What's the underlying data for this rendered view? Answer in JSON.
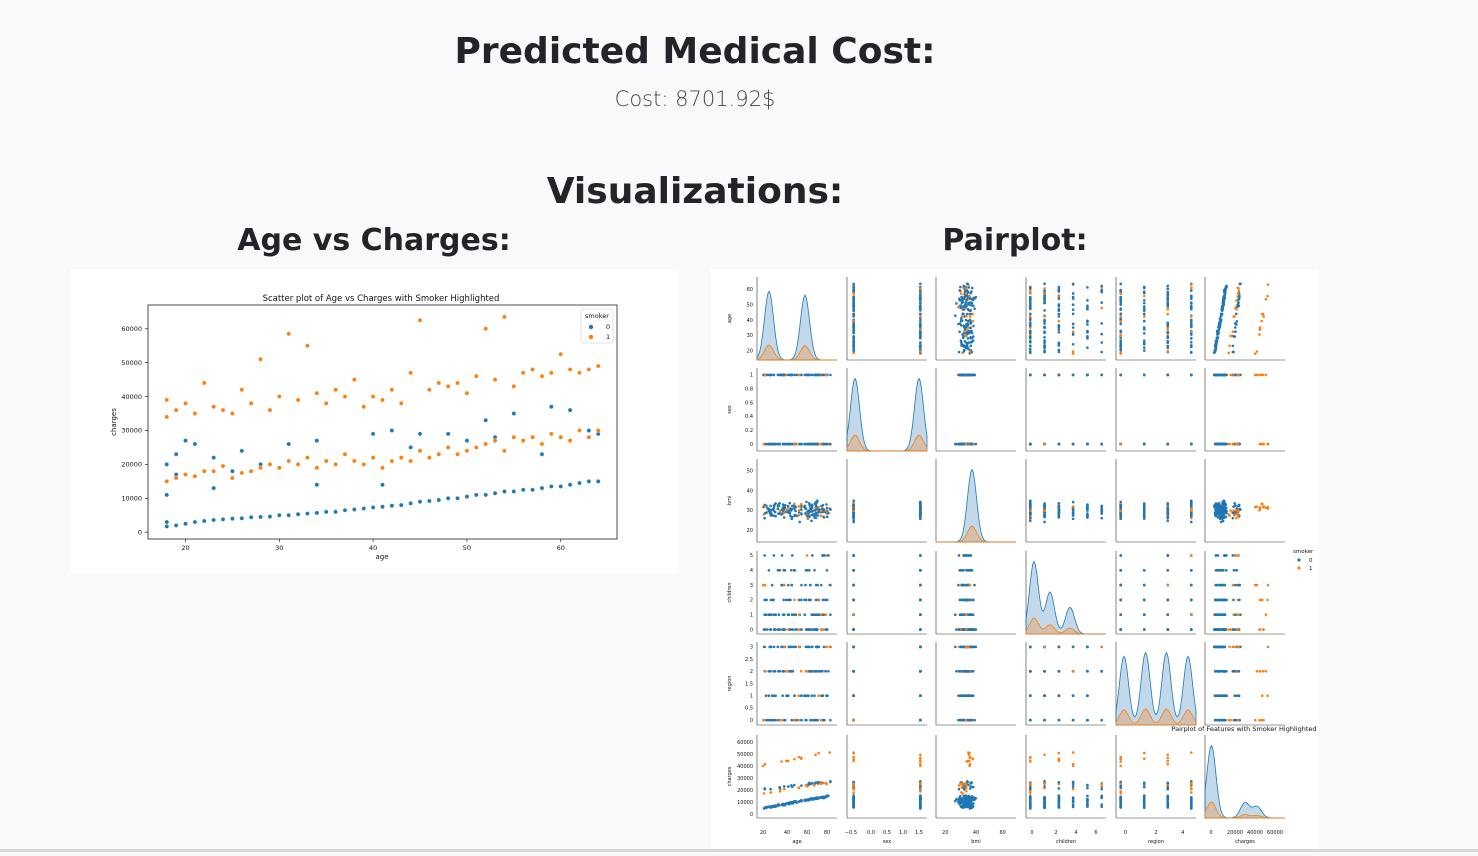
{
  "header": {
    "title": "Predicted Medical Cost:",
    "cost_text": "Cost: 8701.92$"
  },
  "visualizations": {
    "title": "Visualizations:",
    "age_title": "Age vs Charges:",
    "pair_title": "Pairplot:"
  },
  "colors": {
    "non_smoker": "#1f77b4",
    "smoker": "#ff7f0e"
  },
  "chart_data": [
    {
      "type": "scatter",
      "title": "Scatter plot of Age vs Charges with Smoker Highlighted",
      "xlabel": "age",
      "ylabel": "charges",
      "xlim": [
        16,
        66
      ],
      "ylim": [
        -2000,
        67000
      ],
      "xticks": [
        20,
        30,
        40,
        50,
        60
      ],
      "yticks": [
        0,
        10000,
        20000,
        30000,
        40000,
        50000,
        60000
      ],
      "legend": {
        "title": "smoker",
        "placement": "top-right",
        "entries": [
          "0",
          "1"
        ]
      },
      "series": [
        {
          "name": "0",
          "points": [
            [
              18,
              1700
            ],
            [
              18,
              3000
            ],
            [
              18,
              11000
            ],
            [
              18,
              20000
            ],
            [
              19,
              2000
            ],
            [
              19,
              17000
            ],
            [
              19,
              23000
            ],
            [
              20,
              2500
            ],
            [
              20,
              27000
            ],
            [
              21,
              3000
            ],
            [
              21,
              26000
            ],
            [
              22,
              3300
            ],
            [
              23,
              3600
            ],
            [
              23,
              13000
            ],
            [
              23,
              22000
            ],
            [
              24,
              3800
            ],
            [
              25,
              4000
            ],
            [
              25,
              18000
            ],
            [
              26,
              4100
            ],
            [
              26,
              24000
            ],
            [
              27,
              4400
            ],
            [
              28,
              4500
            ],
            [
              28,
              20000
            ],
            [
              29,
              4600
            ],
            [
              30,
              5000
            ],
            [
              30,
              19000
            ],
            [
              31,
              5000
            ],
            [
              31,
              26000
            ],
            [
              32,
              5300
            ],
            [
              33,
              5500
            ],
            [
              34,
              5700
            ],
            [
              34,
              14000
            ],
            [
              34,
              27000
            ],
            [
              35,
              6000
            ],
            [
              36,
              6000
            ],
            [
              37,
              6500
            ],
            [
              38,
              6700
            ],
            [
              39,
              7000
            ],
            [
              40,
              7300
            ],
            [
              40,
              29000
            ],
            [
              41,
              7500
            ],
            [
              41,
              14000
            ],
            [
              42,
              7800
            ],
            [
              42,
              30000
            ],
            [
              43,
              8000
            ],
            [
              44,
              8500
            ],
            [
              44,
              25000
            ],
            [
              45,
              9000
            ],
            [
              45,
              29000
            ],
            [
              46,
              9200
            ],
            [
              47,
              9500
            ],
            [
              48,
              10000
            ],
            [
              48,
              29000
            ],
            [
              49,
              10000
            ],
            [
              50,
              10500
            ],
            [
              50,
              27000
            ],
            [
              51,
              11000
            ],
            [
              52,
              11000
            ],
            [
              52,
              33000
            ],
            [
              53,
              11500
            ],
            [
              53,
              28000
            ],
            [
              54,
              12000
            ],
            [
              55,
              12000
            ],
            [
              55,
              35000
            ],
            [
              56,
              12500
            ],
            [
              57,
              12500
            ],
            [
              57,
              28000
            ],
            [
              58,
              13000
            ],
            [
              58,
              23000
            ],
            [
              59,
              13500
            ],
            [
              59,
              37000
            ],
            [
              60,
              13500
            ],
            [
              60,
              28000
            ],
            [
              61,
              14000
            ],
            [
              61,
              36000
            ],
            [
              62,
              14500
            ],
            [
              63,
              15000
            ],
            [
              63,
              30000
            ],
            [
              64,
              15000
            ],
            [
              64,
              29000
            ]
          ]
        },
        {
          "name": "1",
          "points": [
            [
              18,
              15000
            ],
            [
              18,
              34000
            ],
            [
              18,
              39000
            ],
            [
              19,
              16000
            ],
            [
              19,
              36000
            ],
            [
              20,
              17000
            ],
            [
              20,
              38000
            ],
            [
              21,
              16500
            ],
            [
              21,
              35000
            ],
            [
              22,
              18000
            ],
            [
              22,
              44000
            ],
            [
              23,
              18000
            ],
            [
              23,
              37000
            ],
            [
              24,
              19500
            ],
            [
              24,
              36000
            ],
            [
              25,
              16000
            ],
            [
              25,
              35000
            ],
            [
              26,
              17500
            ],
            [
              26,
              42000
            ],
            [
              27,
              18000
            ],
            [
              27,
              38000
            ],
            [
              28,
              19000
            ],
            [
              28,
              51000
            ],
            [
              29,
              20000
            ],
            [
              29,
              36000
            ],
            [
              30,
              19000
            ],
            [
              30,
              40000
            ],
            [
              31,
              21000
            ],
            [
              31,
              58500
            ],
            [
              32,
              20000
            ],
            [
              32,
              39000
            ],
            [
              33,
              22000
            ],
            [
              33,
              55000
            ],
            [
              34,
              19000
            ],
            [
              34,
              41000
            ],
            [
              35,
              21000
            ],
            [
              35,
              38000
            ],
            [
              36,
              20000
            ],
            [
              36,
              42000
            ],
            [
              37,
              23000
            ],
            [
              37,
              40000
            ],
            [
              38,
              21000
            ],
            [
              38,
              45000
            ],
            [
              39,
              20000
            ],
            [
              39,
              37000
            ],
            [
              40,
              22000
            ],
            [
              40,
              40000
            ],
            [
              41,
              19000
            ],
            [
              41,
              39000
            ],
            [
              42,
              21000
            ],
            [
              42,
              42000
            ],
            [
              43,
              22000
            ],
            [
              43,
              38000
            ],
            [
              44,
              21000
            ],
            [
              44,
              47000
            ],
            [
              45,
              24000
            ],
            [
              45,
              62500
            ],
            [
              46,
              22000
            ],
            [
              46,
              42000
            ],
            [
              47,
              23000
            ],
            [
              47,
              44000
            ],
            [
              48,
              25000
            ],
            [
              48,
              43000
            ],
            [
              49,
              23000
            ],
            [
              49,
              44000
            ],
            [
              50,
              24000
            ],
            [
              50,
              41000
            ],
            [
              51,
              25000
            ],
            [
              51,
              46000
            ],
            [
              52,
              26000
            ],
            [
              52,
              60000
            ],
            [
              53,
              27000
            ],
            [
              53,
              45000
            ],
            [
              54,
              24000
            ],
            [
              54,
              63500
            ],
            [
              55,
              28000
            ],
            [
              55,
              43000
            ],
            [
              56,
              27000
            ],
            [
              56,
              47000
            ],
            [
              57,
              28000
            ],
            [
              57,
              48000
            ],
            [
              58,
              26000
            ],
            [
              58,
              46000
            ],
            [
              59,
              29000
            ],
            [
              59,
              47000
            ],
            [
              60,
              28000
            ],
            [
              60,
              52500
            ],
            [
              61,
              27000
            ],
            [
              61,
              48000
            ],
            [
              62,
              30000
            ],
            [
              62,
              47000
            ],
            [
              63,
              28000
            ],
            [
              63,
              48000
            ],
            [
              64,
              30000
            ],
            [
              64,
              49000
            ]
          ]
        }
      ]
    },
    {
      "type": "scatter",
      "title": "Pairplot of Features with Smoker Highlighted",
      "variables": [
        "age",
        "sex",
        "bmi",
        "children",
        "region",
        "charges"
      ],
      "legend": {
        "title": "smoker",
        "placement": "right",
        "entries": [
          "0",
          "1"
        ]
      },
      "diagonal": "kde",
      "axis_ticks": {
        "age": [
          20,
          30,
          40,
          50,
          60
        ],
        "sex": [
          0.0,
          0.2,
          0.4,
          0.6,
          0.8,
          1.0
        ],
        "bmi": [
          20,
          30,
          40,
          50
        ],
        "children": [
          0,
          1,
          2,
          3,
          4,
          5
        ],
        "region": [
          0.0,
          0.5,
          1.0,
          1.5,
          2.0,
          2.5,
          3.0
        ],
        "charges": [
          0,
          10000,
          20000,
          30000,
          40000,
          50000,
          60000
        ]
      },
      "x_ticks": {
        "age": [
          "20",
          "40",
          "60",
          "80"
        ],
        "sex": [
          "−0.5",
          "0.0",
          "0.5",
          "1.0",
          "1.5"
        ],
        "bmi": [
          "20",
          "40",
          "60"
        ],
        "children": [
          "0",
          "2",
          "4",
          "6"
        ],
        "region": [
          "0",
          "2",
          "4"
        ],
        "charges": [
          "0",
          "20000",
          "40000",
          "60000"
        ]
      }
    }
  ]
}
